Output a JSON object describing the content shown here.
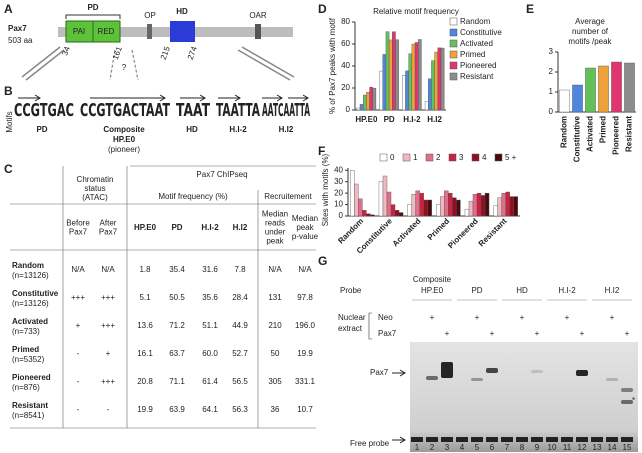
{
  "panel_labels": [
    "A",
    "B",
    "C",
    "D",
    "E",
    "F",
    "G"
  ],
  "domain_map": {
    "protein": "Pax7",
    "length": "503 aa",
    "pd": "PD",
    "pai": "PAI",
    "red": "RED",
    "op": "OP",
    "hd": "HD",
    "oar": "OAR",
    "positions": [
      34,
      161,
      215,
      274
    ],
    "question": "?"
  },
  "motifs": {
    "axis_label": "Motifs",
    "logos": [
      {
        "sequence": "CCGTGAC",
        "color": "#2a9a2a",
        "label": [
          "PD"
        ]
      },
      {
        "sequence": "CCGTGACTAAT",
        "color": "#d631c9",
        "label": [
          "Composite",
          "HP.E0"
        ],
        "note": "(pioneer)"
      },
      {
        "sequence": "TAAT",
        "color": "#9b8fe0",
        "label": [
          "HD"
        ]
      },
      {
        "sequence": "TAATTA",
        "color": "#4fb8d8",
        "label": [
          "H.I-2"
        ]
      },
      {
        "sequence": "AATCAATTA",
        "color": "#3a3ad0",
        "label": [
          "H.I2"
        ]
      }
    ]
  },
  "table": {
    "headers": {
      "chromatin": [
        "Chromatin",
        "status",
        "(ATAC)"
      ],
      "chipseq": "Pax7 ChIPseq",
      "motif_freq": "Motif frequency (%)",
      "recruitment": "Recruitement"
    },
    "columns": [
      [
        "Before",
        "Pax7"
      ],
      [
        "After",
        "Pax7"
      ],
      [
        "HP.E0"
      ],
      [
        "PD"
      ],
      [
        "H.I-2"
      ],
      [
        "H.I2"
      ],
      [
        "Median",
        "reads",
        "under",
        "peak"
      ],
      [
        "Median",
        "peak",
        "p-value"
      ]
    ],
    "column_colors": [
      "#222222",
      "#222222",
      "#d631c9",
      "#2a9a2a",
      "#4fb8d8",
      "#3a3ad0",
      "#222222",
      "#222222"
    ],
    "rows": [
      {
        "name": "Random",
        "n": "(n=13126)",
        "cells": [
          "N/A",
          "N/A",
          "1.8",
          "35.4",
          "31.6",
          "7.8",
          "N/A",
          "N/A"
        ]
      },
      {
        "name": "Constitutive",
        "n": "(n=13126)",
        "cells": [
          "+++",
          "+++",
          "5.1",
          "50.5",
          "35.6",
          "28.4",
          "131",
          "97.8"
        ]
      },
      {
        "name": "Activated",
        "n": "(n=733)",
        "cells": [
          "+",
          "+++",
          "13.6",
          "71.2",
          "51.1",
          "44.9",
          "210",
          "196.0"
        ]
      },
      {
        "name": "Primed",
        "n": "(n=5352)",
        "cells": [
          "-",
          "+",
          "16.1",
          "63.7",
          "60.0",
          "52.7",
          "50",
          "19.9"
        ]
      },
      {
        "name": "Pioneered",
        "n": "(n=876)",
        "cells": [
          "-",
          "+++",
          "20.8",
          "71.1",
          "61.4",
          "56.5",
          "305",
          "331.1"
        ]
      },
      {
        "name": "Resistant",
        "n": "(n=8541)",
        "cells": [
          "-",
          "-",
          "19.9",
          "63.9",
          "64.1",
          "56.3",
          "36",
          "10.7"
        ]
      }
    ]
  },
  "chart_data": [
    {
      "type": "bar",
      "title": "Relative motif frequency",
      "y_label": "% of Pax7 peaks with motif",
      "categories": [
        "HP.E0",
        "PD",
        "H.I-2",
        "H.I2"
      ],
      "series": [
        {
          "name": "Random",
          "color": "#ffffff",
          "values": [
            1.8,
            35.4,
            31.6,
            7.8
          ]
        },
        {
          "name": "Constitutive",
          "color": "#4f86e0",
          "values": [
            5.1,
            50.5,
            35.6,
            28.4
          ]
        },
        {
          "name": "Activated",
          "color": "#66c05a",
          "values": [
            13.6,
            71.2,
            51.1,
            44.9
          ]
        },
        {
          "name": "Primed",
          "color": "#f0a23a",
          "values": [
            16.1,
            63.7,
            60.0,
            52.7
          ]
        },
        {
          "name": "Pioneered",
          "color": "#e0356f",
          "values": [
            20.8,
            71.1,
            61.4,
            56.5
          ]
        },
        {
          "name": "Resistant",
          "color": "#8c8c8c",
          "values": [
            19.9,
            63.9,
            64.1,
            56.3
          ]
        }
      ],
      "ylim": [
        0,
        80
      ],
      "yticks": [
        0,
        20,
        40,
        60,
        80
      ]
    },
    {
      "type": "bar",
      "title": [
        "Average",
        "number of",
        "motifs /peak"
      ],
      "categories": [
        "Random",
        "Constitutive",
        "Activated",
        "Primed",
        "Pioneered",
        "Resistant"
      ],
      "values": [
        1.1,
        1.35,
        2.2,
        2.3,
        2.5,
        2.45
      ],
      "colors": [
        "#ffffff",
        "#4f86e0",
        "#66c05a",
        "#f0a23a",
        "#e0356f",
        "#8c8c8c"
      ],
      "ylim": [
        0,
        3
      ],
      "yticks": [
        0,
        1,
        2,
        3
      ]
    },
    {
      "type": "bar",
      "y_label": "Sites with motifs (%)",
      "categories": [
        "Random",
        "Constitutive",
        "Activated",
        "Primed",
        "Pioneered",
        "Resistant"
      ],
      "series": [
        {
          "name": "0",
          "color": "#ffffff",
          "values": [
            40,
            30,
            10,
            10,
            6,
            9
          ]
        },
        {
          "name": "1",
          "color": "#f2b8c2",
          "values": [
            28,
            35,
            19,
            17,
            13,
            16
          ]
        },
        {
          "name": "2",
          "color": "#e0708a",
          "values": [
            15,
            21,
            22,
            22,
            19,
            20
          ]
        },
        {
          "name": "3",
          "color": "#c8243f",
          "values": [
            5,
            10,
            20,
            20,
            20,
            21
          ]
        },
        {
          "name": "4",
          "color": "#8e1020",
          "values": [
            2,
            5,
            14,
            16,
            18,
            17
          ]
        },
        {
          "name": "5 +",
          "color": "#4a0a10",
          "values": [
            1,
            3,
            14,
            14,
            20,
            17
          ]
        }
      ],
      "ylim": [
        0,
        42
      ],
      "yticks": [
        0,
        10,
        20,
        30,
        40
      ]
    }
  ],
  "gel": {
    "probe_label": "Probe",
    "probes": [
      {
        "name": [
          "Composite",
          "HP.E0"
        ],
        "color": "#d631c9"
      },
      {
        "name": [
          "PD"
        ],
        "color": "#2a9a2a"
      },
      {
        "name": [
          "HD"
        ],
        "color": "#9b8fe0"
      },
      {
        "name": [
          "H.I-2"
        ],
        "color": "#4fb8d8"
      },
      {
        "name": [
          "H.I2"
        ],
        "color": "#3a3ad0"
      }
    ],
    "neo": "Neo",
    "nuclear_extract": [
      "Nuclear",
      "extract"
    ],
    "pax7": "Pax7",
    "plus": "+",
    "band_label": "Pax7",
    "supershift": "*",
    "free_probe": "Free probe",
    "lanes": [
      1,
      2,
      3,
      4,
      5,
      6,
      7,
      8,
      9,
      10,
      11,
      12,
      13,
      14,
      15
    ]
  }
}
